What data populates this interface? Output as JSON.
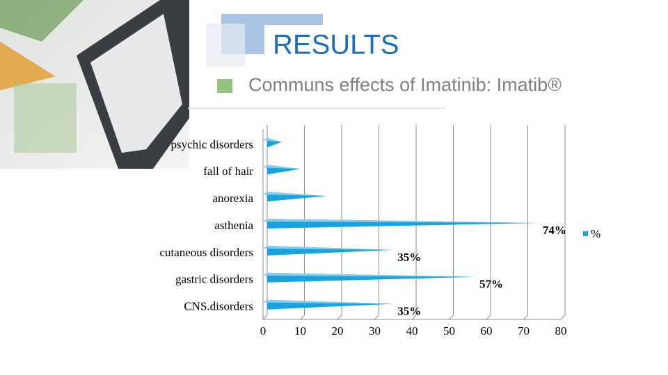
{
  "chart_data": {
    "type": "bar",
    "orientation": "horizontal",
    "title": "RESULTS",
    "subtitle": "Communs effects of Imatinib: Imatib®",
    "categories": [
      "psychic disorders",
      "fall of hair",
      "anorexia",
      "asthenia",
      "cutaneous disorders",
      "gastric disorders",
      "CNS.disorders"
    ],
    "series": [
      {
        "name": "%",
        "color": "#1ba1dd",
        "values": [
          5,
          10,
          17,
          74,
          35,
          57,
          35
        ],
        "value_labels": [
          null,
          null,
          null,
          "74%",
          "35%",
          "57%",
          "35%"
        ]
      }
    ],
    "xlim": [
      0,
      80
    ],
    "xticks": [
      0,
      10,
      20,
      30,
      40,
      50,
      60,
      70,
      80
    ],
    "grid": true,
    "legend": "right"
  }
}
